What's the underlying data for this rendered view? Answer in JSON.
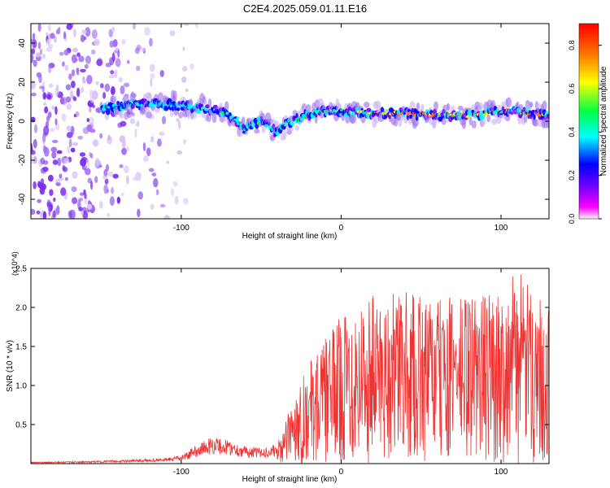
{
  "page_title": "C2E4.2025.059.01.11.E16",
  "colors": {
    "snr_line": "#ee3333",
    "axis": "#000000",
    "background": "#ffffff"
  },
  "chart_data": [
    {
      "type": "heatmap",
      "title": "C2E4.2025.059.01.11.E16",
      "xlabel": "Height of straight line (km)",
      "ylabel": "Frequency (Hz)",
      "xlim": [
        -194,
        130
      ],
      "ylim": [
        -50,
        50
      ],
      "x_ticks": [
        -100,
        0,
        100
      ],
      "y_ticks": [
        -40,
        -20,
        0,
        20,
        40
      ],
      "grid": false,
      "colorbar": {
        "label": "Normalized spectral amplitude",
        "range": [
          0,
          0.9
        ],
        "ticks": [
          "0.0",
          "0.2",
          "0.4",
          "0.6",
          "0.8"
        ],
        "colors": [
          "#f4f4f4",
          "#ff00ff",
          "#7700ff",
          "#0000ff",
          "#00ffff",
          "#00ff44",
          "#ffff00",
          "#ff7700",
          "#ff0000"
        ]
      },
      "signal_band": {
        "center_freq_hz": [
          [
            -150,
            6
          ],
          [
            -140,
            8
          ],
          [
            -120,
            9
          ],
          [
            -100,
            8
          ],
          [
            -90,
            7
          ],
          [
            -80,
            6
          ],
          [
            -70,
            3
          ],
          [
            -60,
            -4
          ],
          [
            -55,
            -1
          ],
          [
            -50,
            0
          ],
          [
            -45,
            -3
          ],
          [
            -40,
            -6
          ],
          [
            -35,
            -2
          ],
          [
            -25,
            2
          ],
          [
            -15,
            5
          ],
          [
            0,
            5
          ],
          [
            20,
            4
          ],
          [
            40,
            4
          ],
          [
            60,
            3
          ],
          [
            80,
            3
          ],
          [
            100,
            5
          ],
          [
            110,
            5
          ],
          [
            130,
            3
          ]
        ],
        "peak_amplitude": 0.9
      },
      "noise_region_km": [
        -194,
        -100
      ]
    },
    {
      "type": "line",
      "title": "",
      "xlabel": "Height of straight line (km)",
      "ylabel": "SNR (10 * v/v)",
      "y_multiplier": "(x10^4)",
      "xlim": [
        -194,
        130
      ],
      "ylim": [
        0,
        2.5
      ],
      "x_ticks": [
        -100,
        0,
        100
      ],
      "y_ticks": [
        0.5,
        1,
        1.5,
        2,
        2.5
      ],
      "grid": false,
      "series": [
        {
          "name": "SNR",
          "envelope_x": [
            -194,
            -160,
            -130,
            -110,
            -100,
            -90,
            -80,
            -70,
            -60,
            -50,
            -40,
            -35,
            -30,
            -20,
            -10,
            0,
            10,
            20,
            40,
            60,
            80,
            100,
            110,
            120,
            130
          ],
          "envelope_y": [
            0.02,
            0.03,
            0.05,
            0.07,
            0.1,
            0.25,
            0.35,
            0.3,
            0.22,
            0.2,
            0.25,
            0.5,
            0.9,
            1.3,
            1.6,
            1.9,
            2.1,
            2.2,
            2.2,
            2.1,
            2.2,
            2.2,
            2.5,
            2.2,
            2.0
          ]
        }
      ]
    }
  ]
}
